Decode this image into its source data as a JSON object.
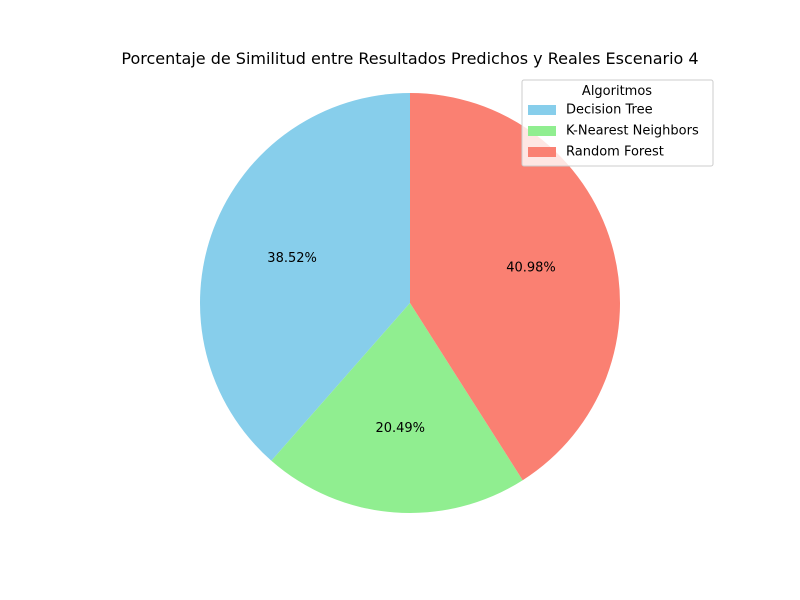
{
  "chart_data": {
    "type": "pie",
    "title": "Porcentaje de Similitud entre Resultados Predichos y Reales Escenario 4",
    "categories": [
      "Decision Tree",
      "K-Nearest Neighbors",
      "Random Forest"
    ],
    "values": [
      38.52,
      20.49,
      40.98
    ],
    "value_labels": [
      "38.52%",
      "20.49%",
      "40.98%"
    ],
    "colors": [
      "#87CEEB",
      "#90EE90",
      "#FA8072"
    ],
    "start_angle_deg": 90,
    "direction": "counterclockwise",
    "legend": {
      "title": "Algoritmos",
      "placement": "top-right"
    }
  }
}
